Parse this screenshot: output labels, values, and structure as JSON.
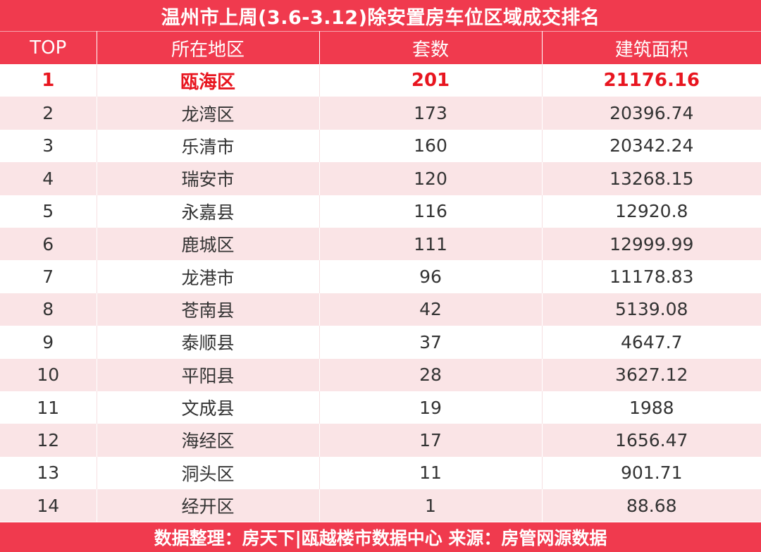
{
  "title": "温州市上周(3.6-3.12)除安置房车位区域成交排名",
  "headers": [
    "TOP",
    "所在地区",
    "套数",
    "建筑面积"
  ],
  "rows": [
    {
      "rank": "1",
      "region": "瓯海区",
      "units": "201",
      "area": "21176.16",
      "highlight": true
    },
    {
      "rank": "2",
      "region": "龙湾区",
      "units": "173",
      "area": "20396.74"
    },
    {
      "rank": "3",
      "region": "乐清市",
      "units": "160",
      "area": "20342.24"
    },
    {
      "rank": "4",
      "region": "瑞安市",
      "units": "120",
      "area": "13268.15"
    },
    {
      "rank": "5",
      "region": "永嘉县",
      "units": "116",
      "area": "12920.8"
    },
    {
      "rank": "6",
      "region": "鹿城区",
      "units": "111",
      "area": "12999.99"
    },
    {
      "rank": "7",
      "region": "龙港市",
      "units": "96",
      "area": "11178.83"
    },
    {
      "rank": "8",
      "region": "苍南县",
      "units": "42",
      "area": "5139.08"
    },
    {
      "rank": "9",
      "region": "泰顺县",
      "units": "37",
      "area": "4647.7"
    },
    {
      "rank": "10",
      "region": "平阳县",
      "units": "28",
      "area": "3627.12"
    },
    {
      "rank": "11",
      "region": "文成县",
      "units": "19",
      "area": "1988"
    },
    {
      "rank": "12",
      "region": "海经区",
      "units": "17",
      "area": "1656.47"
    },
    {
      "rank": "13",
      "region": "洞头区",
      "units": "11",
      "area": "901.71"
    },
    {
      "rank": "14",
      "region": "经开区",
      "units": "1",
      "area": "88.68"
    }
  ],
  "footer": "数据整理：房天下|瓯越楼市数据中心 来源：房管网源数据",
  "colors": {
    "accent": "#f03a4e",
    "stripe": "#fae4e6",
    "highlight_text": "#e8151f"
  }
}
